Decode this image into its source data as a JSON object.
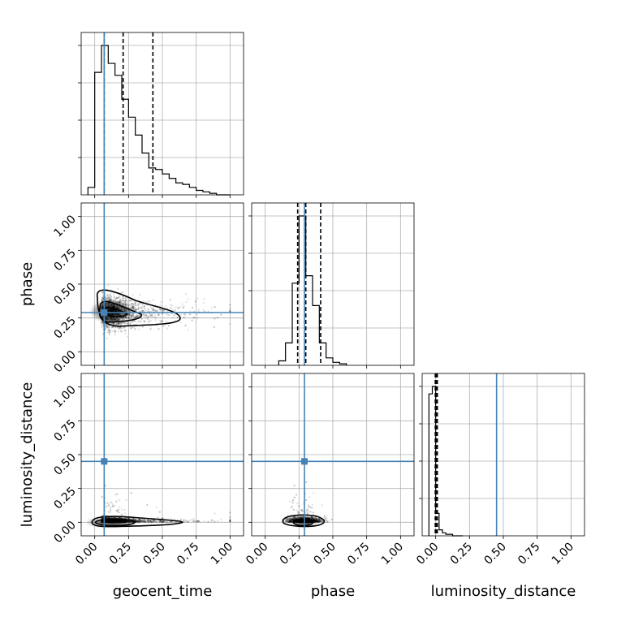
{
  "chart_data": {
    "type": "corner",
    "parameters": [
      "geocent_time",
      "phase",
      "luminosity_distance"
    ],
    "injection": {
      "geocent_time": 0.07,
      "phase": 0.29,
      "luminosity_distance": 0.45
    },
    "range": [
      -0.1,
      1.1
    ],
    "ticks": [
      0.0,
      0.25,
      0.5,
      0.75,
      1.0
    ],
    "tick_labels": [
      "0.00",
      "0.25",
      "0.50",
      "0.75",
      "1.00"
    ],
    "quantiles": {
      "geocent_time": [
        0.07,
        0.21,
        0.43
      ],
      "phase": [
        0.24,
        0.3,
        0.41
      ],
      "luminosity_distance": [
        -0.003,
        0.003,
        0.012
      ]
    },
    "histograms": {
      "geocent_time": {
        "bin_edges": [
          -0.05,
          0.0,
          0.05,
          0.1,
          0.15,
          0.2,
          0.25,
          0.3,
          0.35,
          0.4,
          0.45,
          0.5,
          0.55,
          0.6,
          0.65,
          0.7,
          0.75,
          0.8,
          0.85,
          0.9,
          0.95,
          1.0
        ],
        "counts": [
          5,
          82,
          100,
          88,
          80,
          64,
          52,
          40,
          28,
          18,
          17,
          14,
          11,
          8,
          7,
          5,
          3,
          2,
          1,
          0,
          0
        ]
      },
      "phase": {
        "bin_edges": [
          0.1,
          0.15,
          0.2,
          0.25,
          0.3,
          0.35,
          0.4,
          0.45,
          0.5,
          0.55,
          0.6
        ],
        "counts": [
          3,
          15,
          55,
          100,
          60,
          40,
          15,
          5,
          2,
          1
        ]
      },
      "luminosity_distance": {
        "bin_edges": [
          -0.05,
          -0.025,
          0.0,
          0.025,
          0.05,
          0.075,
          0.1,
          0.125,
          0.15,
          0.175,
          0.2
        ],
        "counts": [
          95,
          100,
          15,
          4,
          2,
          1,
          1,
          0,
          0,
          0
        ]
      }
    }
  }
}
